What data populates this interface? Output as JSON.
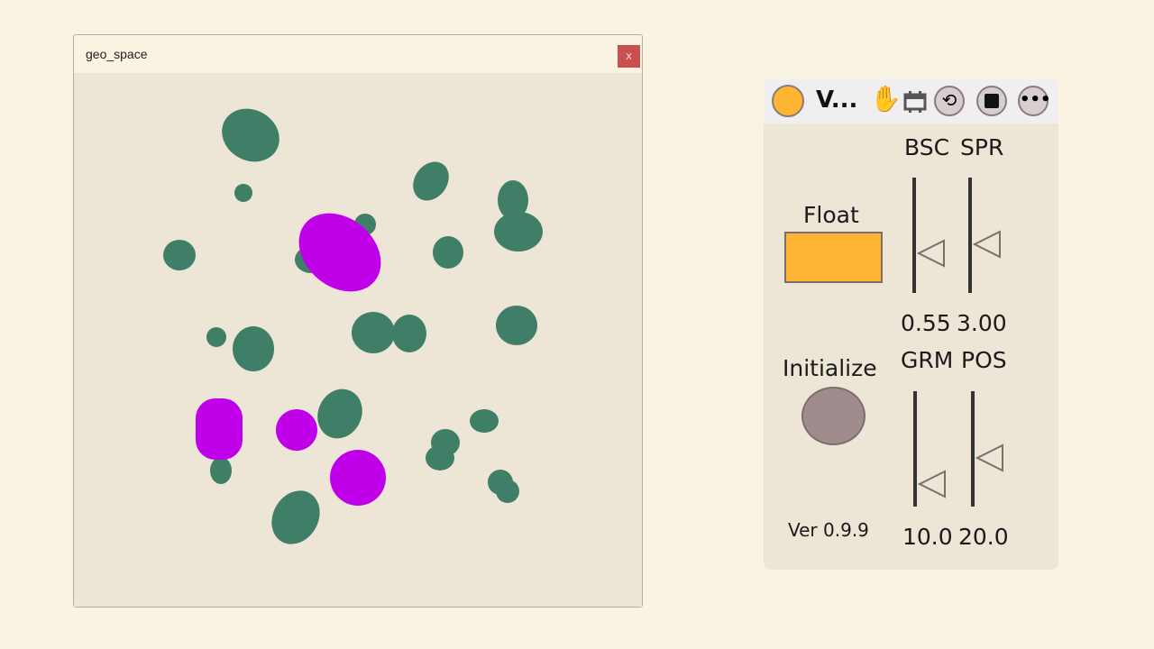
{
  "window": {
    "title": "geo_space",
    "close_label": "x"
  },
  "colors": {
    "blob_green": "#3f7f67",
    "blob_magenta": "#c000e8",
    "float_button": "#ffb533",
    "accent_hand": "#3b3bf5"
  },
  "panel": {
    "title": "V...",
    "icons": [
      "status-dot",
      "hand-icon",
      "calendar-icon",
      "refresh-icon",
      "save-icon",
      "more-icon"
    ],
    "float_label": "Float",
    "initialize_label": "Initialize",
    "version": "Ver 0.9.9",
    "sliders": [
      {
        "label": "BSC",
        "value": "0.55",
        "level": 0.35
      },
      {
        "label": "SPR",
        "value": "3.00",
        "level": 0.42
      },
      {
        "label": "GRM",
        "value": "10.0",
        "level": 0.2
      },
      {
        "label": "POS",
        "value": "20.0",
        "level": 0.43
      }
    ]
  }
}
